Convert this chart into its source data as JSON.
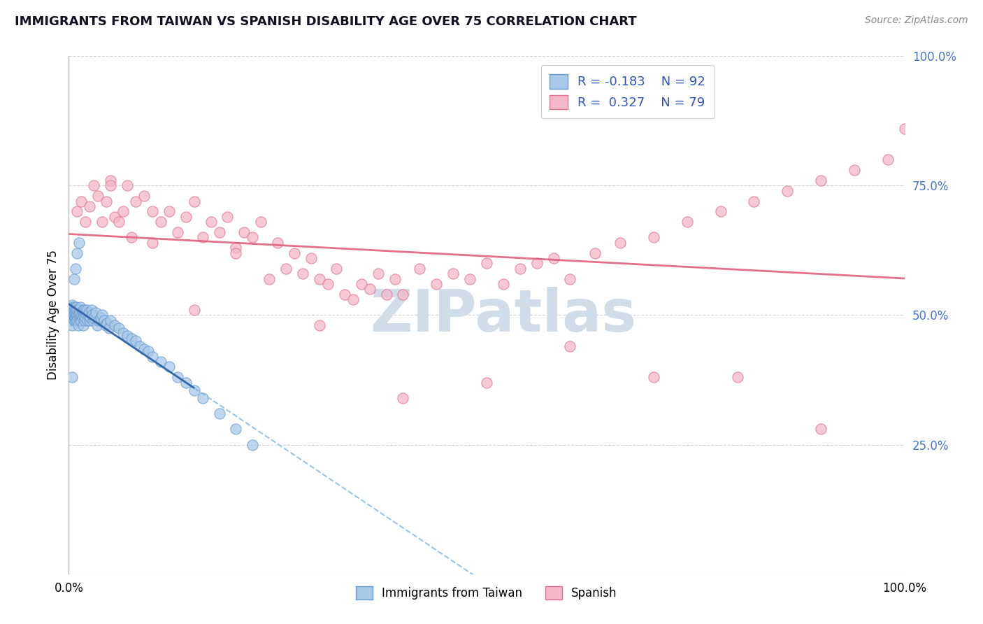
{
  "title": "IMMIGRANTS FROM TAIWAN VS SPANISH DISABILITY AGE OVER 75 CORRELATION CHART",
  "source": "Source: ZipAtlas.com",
  "ylabel": "Disability Age Over 75",
  "legend_label1": "Immigrants from Taiwan",
  "legend_label2": "Spanish",
  "r1": -0.183,
  "n1": 92,
  "r2": 0.327,
  "n2": 79,
  "color_blue_fill": "#A8C8E8",
  "color_blue_edge": "#6699CC",
  "color_pink_fill": "#F4B8C8",
  "color_pink_edge": "#E07090",
  "line_color_blue_solid": "#3366AA",
  "line_color_blue_dash": "#88BBDD",
  "line_color_pink": "#E06080",
  "watermark_color": "#D0DCE8",
  "background_color": "#FFFFFF",
  "grid_color": "#CCCCCC",
  "ylim_min": 0.0,
  "ylim_max": 1.0,
  "xlim_min": 0.0,
  "xlim_max": 1.0,
  "ytick_positions": [
    0.25,
    0.5,
    0.75,
    1.0
  ],
  "ytick_labels": [
    "25.0%",
    "50.0%",
    "75.0%",
    "100.0%"
  ],
  "xtick_positions": [
    0.0,
    1.0
  ],
  "xtick_labels": [
    "0.0%",
    "100.0%"
  ],
  "tw_x": [
    0.001,
    0.002,
    0.002,
    0.003,
    0.003,
    0.004,
    0.004,
    0.004,
    0.005,
    0.005,
    0.005,
    0.006,
    0.006,
    0.006,
    0.007,
    0.007,
    0.007,
    0.008,
    0.008,
    0.008,
    0.009,
    0.009,
    0.009,
    0.01,
    0.01,
    0.01,
    0.011,
    0.011,
    0.011,
    0.012,
    0.012,
    0.013,
    0.013,
    0.014,
    0.014,
    0.015,
    0.015,
    0.016,
    0.016,
    0.017,
    0.017,
    0.018,
    0.018,
    0.019,
    0.019,
    0.02,
    0.02,
    0.021,
    0.021,
    0.022,
    0.023,
    0.024,
    0.025,
    0.026,
    0.027,
    0.028,
    0.029,
    0.03,
    0.032,
    0.034,
    0.036,
    0.038,
    0.04,
    0.042,
    0.044,
    0.046,
    0.048,
    0.05,
    0.055,
    0.06,
    0.065,
    0.07,
    0.075,
    0.08,
    0.085,
    0.09,
    0.095,
    0.1,
    0.11,
    0.12,
    0.13,
    0.14,
    0.15,
    0.16,
    0.18,
    0.2,
    0.22,
    0.01,
    0.012,
    0.008,
    0.006,
    0.004
  ],
  "tw_y": [
    0.5,
    0.51,
    0.49,
    0.505,
    0.495,
    0.48,
    0.52,
    0.5,
    0.495,
    0.515,
    0.505,
    0.49,
    0.51,
    0.5,
    0.505,
    0.495,
    0.515,
    0.5,
    0.49,
    0.51,
    0.495,
    0.505,
    0.515,
    0.5,
    0.49,
    0.51,
    0.495,
    0.505,
    0.48,
    0.51,
    0.5,
    0.49,
    0.505,
    0.495,
    0.515,
    0.5,
    0.49,
    0.505,
    0.495,
    0.51,
    0.48,
    0.5,
    0.495,
    0.51,
    0.49,
    0.505,
    0.495,
    0.5,
    0.51,
    0.49,
    0.5,
    0.505,
    0.49,
    0.495,
    0.51,
    0.5,
    0.49,
    0.495,
    0.505,
    0.48,
    0.49,
    0.495,
    0.5,
    0.49,
    0.48,
    0.485,
    0.475,
    0.49,
    0.48,
    0.475,
    0.465,
    0.46,
    0.455,
    0.45,
    0.44,
    0.435,
    0.43,
    0.42,
    0.41,
    0.4,
    0.38,
    0.37,
    0.355,
    0.34,
    0.31,
    0.28,
    0.25,
    0.62,
    0.64,
    0.59,
    0.57,
    0.38
  ],
  "sp_x": [
    0.01,
    0.015,
    0.02,
    0.025,
    0.03,
    0.035,
    0.04,
    0.045,
    0.05,
    0.055,
    0.06,
    0.065,
    0.07,
    0.075,
    0.08,
    0.09,
    0.1,
    0.11,
    0.12,
    0.13,
    0.14,
    0.15,
    0.16,
    0.17,
    0.18,
    0.19,
    0.2,
    0.21,
    0.22,
    0.23,
    0.24,
    0.25,
    0.26,
    0.27,
    0.28,
    0.29,
    0.3,
    0.31,
    0.32,
    0.33,
    0.34,
    0.35,
    0.36,
    0.37,
    0.38,
    0.39,
    0.4,
    0.42,
    0.44,
    0.46,
    0.48,
    0.5,
    0.52,
    0.54,
    0.56,
    0.58,
    0.6,
    0.63,
    0.66,
    0.7,
    0.74,
    0.78,
    0.82,
    0.86,
    0.9,
    0.94,
    0.98,
    1.0,
    0.05,
    0.1,
    0.2,
    0.3,
    0.5,
    0.7,
    0.9,
    0.8,
    0.6,
    0.4,
    0.15
  ],
  "sp_y": [
    0.7,
    0.72,
    0.68,
    0.71,
    0.75,
    0.73,
    0.68,
    0.72,
    0.76,
    0.69,
    0.68,
    0.7,
    0.75,
    0.65,
    0.72,
    0.73,
    0.64,
    0.68,
    0.7,
    0.66,
    0.69,
    0.72,
    0.65,
    0.68,
    0.66,
    0.69,
    0.63,
    0.66,
    0.65,
    0.68,
    0.57,
    0.64,
    0.59,
    0.62,
    0.58,
    0.61,
    0.57,
    0.56,
    0.59,
    0.54,
    0.53,
    0.56,
    0.55,
    0.58,
    0.54,
    0.57,
    0.54,
    0.59,
    0.56,
    0.58,
    0.57,
    0.6,
    0.56,
    0.59,
    0.6,
    0.61,
    0.57,
    0.62,
    0.64,
    0.65,
    0.68,
    0.7,
    0.72,
    0.74,
    0.76,
    0.78,
    0.8,
    0.86,
    0.75,
    0.7,
    0.62,
    0.48,
    0.37,
    0.38,
    0.28,
    0.38,
    0.44,
    0.34,
    0.51
  ]
}
